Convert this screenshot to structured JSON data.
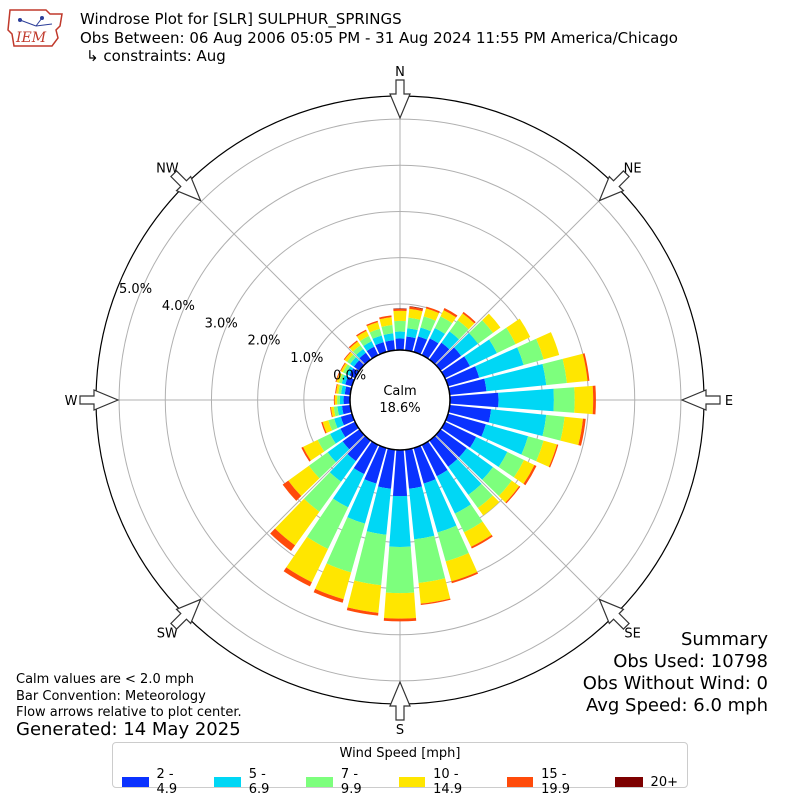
{
  "header": {
    "title_line1": "Windrose Plot for [SLR] SULPHUR_SPRINGS",
    "title_line2": "Obs Between: 06 Aug 2006 05:05 PM - 31 Aug 2024 11:55 PM America/Chicago",
    "title_line3": "↳ constraints: Aug",
    "logo_text": "IEM"
  },
  "notes": {
    "line1": "Calm values are < 2.0 mph",
    "line2": "Bar Convention: Meteorology",
    "line3": "Flow arrows relative to plot center.",
    "generated": "Generated: 14 May 2025"
  },
  "summary": {
    "title": "Summary",
    "obs_used": "Obs Used: 10798",
    "obs_without_wind": "Obs Without Wind: 0",
    "avg_speed": "Avg Speed: 6.0 mph"
  },
  "chart_data": {
    "type": "windrose",
    "calm_label": "Calm",
    "calm_value": "18.6%",
    "directions": [
      "N",
      "NE",
      "E",
      "SE",
      "S",
      "SW",
      "W",
      "NW"
    ],
    "radial_ticks": [
      "0.0%",
      "1.0%",
      "2.0%",
      "3.0%",
      "4.0%",
      "5.0%"
    ],
    "radial_max": 5.5,
    "legend_title": "Wind Speed [mph]",
    "bins": [
      "2 - 4.9",
      "5 - 6.9",
      "7 - 9.9",
      "10 - 14.9",
      "15 - 19.9",
      "20+"
    ],
    "bin_colors": [
      "#0a32ff",
      "#00d7f5",
      "#7dff7d",
      "#ffe600",
      "#ff4b0a",
      "#7d0000"
    ],
    "sectors": [
      {
        "dir_deg": 0,
        "values": [
          0.25,
          0.15,
          0.23,
          0.22,
          0.04,
          0.01
        ]
      },
      {
        "dir_deg": 10,
        "values": [
          0.3,
          0.18,
          0.23,
          0.19,
          0.05,
          0.01
        ]
      },
      {
        "dir_deg": 20,
        "values": [
          0.35,
          0.2,
          0.25,
          0.18,
          0.04,
          0.0
        ]
      },
      {
        "dir_deg": 30,
        "values": [
          0.4,
          0.25,
          0.28,
          0.15,
          0.05,
          0.0
        ]
      },
      {
        "dir_deg": 40,
        "values": [
          0.45,
          0.3,
          0.3,
          0.18,
          0.04,
          0.0
        ]
      },
      {
        "dir_deg": 50,
        "values": [
          0.55,
          0.45,
          0.4,
          0.2,
          0.0,
          0.0
        ]
      },
      {
        "dir_deg": 60,
        "values": [
          0.6,
          0.65,
          0.45,
          0.35,
          0.0,
          0.0
        ]
      },
      {
        "dir_deg": 70,
        "values": [
          0.7,
          1.0,
          0.45,
          0.35,
          0.0,
          0.0
        ]
      },
      {
        "dir_deg": 80,
        "values": [
          0.8,
          1.3,
          0.45,
          0.45,
          0.04,
          0.0
        ]
      },
      {
        "dir_deg": 90,
        "values": [
          1.05,
          1.2,
          0.45,
          0.4,
          0.06,
          0.0
        ]
      },
      {
        "dir_deg": 100,
        "values": [
          0.9,
          1.2,
          0.4,
          0.4,
          0.06,
          0.0
        ]
      },
      {
        "dir_deg": 110,
        "values": [
          0.85,
          0.95,
          0.35,
          0.3,
          0.03,
          0.0
        ]
      },
      {
        "dir_deg": 120,
        "values": [
          0.75,
          0.75,
          0.4,
          0.25,
          0.05,
          0.0
        ]
      },
      {
        "dir_deg": 130,
        "values": [
          0.7,
          0.7,
          0.5,
          0.2,
          0.03,
          0.0
        ]
      },
      {
        "dir_deg": 140,
        "values": [
          0.7,
          0.75,
          0.35,
          0.2,
          0.0,
          0.0
        ]
      },
      {
        "dir_deg": 150,
        "values": [
          0.75,
          0.9,
          0.45,
          0.35,
          0.04,
          0.0
        ]
      },
      {
        "dir_deg": 160,
        "values": [
          0.8,
          1.1,
          0.65,
          0.45,
          0.04,
          0.0
        ]
      },
      {
        "dir_deg": 170,
        "values": [
          0.85,
          1.1,
          0.95,
          0.45,
          0.03,
          0.0
        ]
      },
      {
        "dir_deg": 180,
        "values": [
          1.0,
          1.1,
          1.0,
          0.55,
          0.06,
          0.0
        ]
      },
      {
        "dir_deg": 190,
        "values": [
          0.85,
          1.0,
          1.1,
          0.6,
          0.06,
          0.0
        ]
      },
      {
        "dir_deg": 200,
        "values": [
          0.8,
          0.9,
          1.1,
          0.6,
          0.08,
          0.0
        ]
      },
      {
        "dir_deg": 210,
        "values": [
          0.7,
          0.8,
          1.0,
          0.8,
          0.1,
          0.0
        ]
      },
      {
        "dir_deg": 220,
        "values": [
          0.55,
          0.55,
          0.8,
          0.9,
          0.15,
          0.0
        ]
      },
      {
        "dir_deg": 230,
        "values": [
          0.45,
          0.4,
          0.5,
          0.55,
          0.15,
          0.0
        ]
      },
      {
        "dir_deg": 240,
        "values": [
          0.35,
          0.25,
          0.3,
          0.35,
          0.04,
          0.0
        ]
      },
      {
        "dir_deg": 250,
        "values": [
          0.25,
          0.15,
          0.13,
          0.13,
          0.03,
          0.0
        ]
      },
      {
        "dir_deg": 260,
        "values": [
          0.18,
          0.1,
          0.08,
          0.06,
          0.02,
          0.0
        ]
      },
      {
        "dir_deg": 270,
        "values": [
          0.14,
          0.08,
          0.06,
          0.05,
          0.02,
          0.0
        ]
      },
      {
        "dir_deg": 280,
        "values": [
          0.12,
          0.08,
          0.06,
          0.05,
          0.02,
          0.0
        ]
      },
      {
        "dir_deg": 290,
        "values": [
          0.15,
          0.08,
          0.06,
          0.06,
          0.02,
          0.0
        ]
      },
      {
        "dir_deg": 300,
        "values": [
          0.14,
          0.08,
          0.07,
          0.05,
          0.02,
          0.0
        ]
      },
      {
        "dir_deg": 310,
        "values": [
          0.15,
          0.1,
          0.08,
          0.07,
          0.02,
          0.0
        ]
      },
      {
        "dir_deg": 320,
        "values": [
          0.18,
          0.1,
          0.1,
          0.1,
          0.03,
          0.0
        ]
      },
      {
        "dir_deg": 330,
        "values": [
          0.2,
          0.13,
          0.13,
          0.12,
          0.03,
          0.0
        ]
      },
      {
        "dir_deg": 340,
        "values": [
          0.22,
          0.15,
          0.15,
          0.15,
          0.03,
          0.0
        ]
      },
      {
        "dir_deg": 350,
        "values": [
          0.22,
          0.15,
          0.18,
          0.17,
          0.04,
          0.0
        ]
      }
    ]
  }
}
